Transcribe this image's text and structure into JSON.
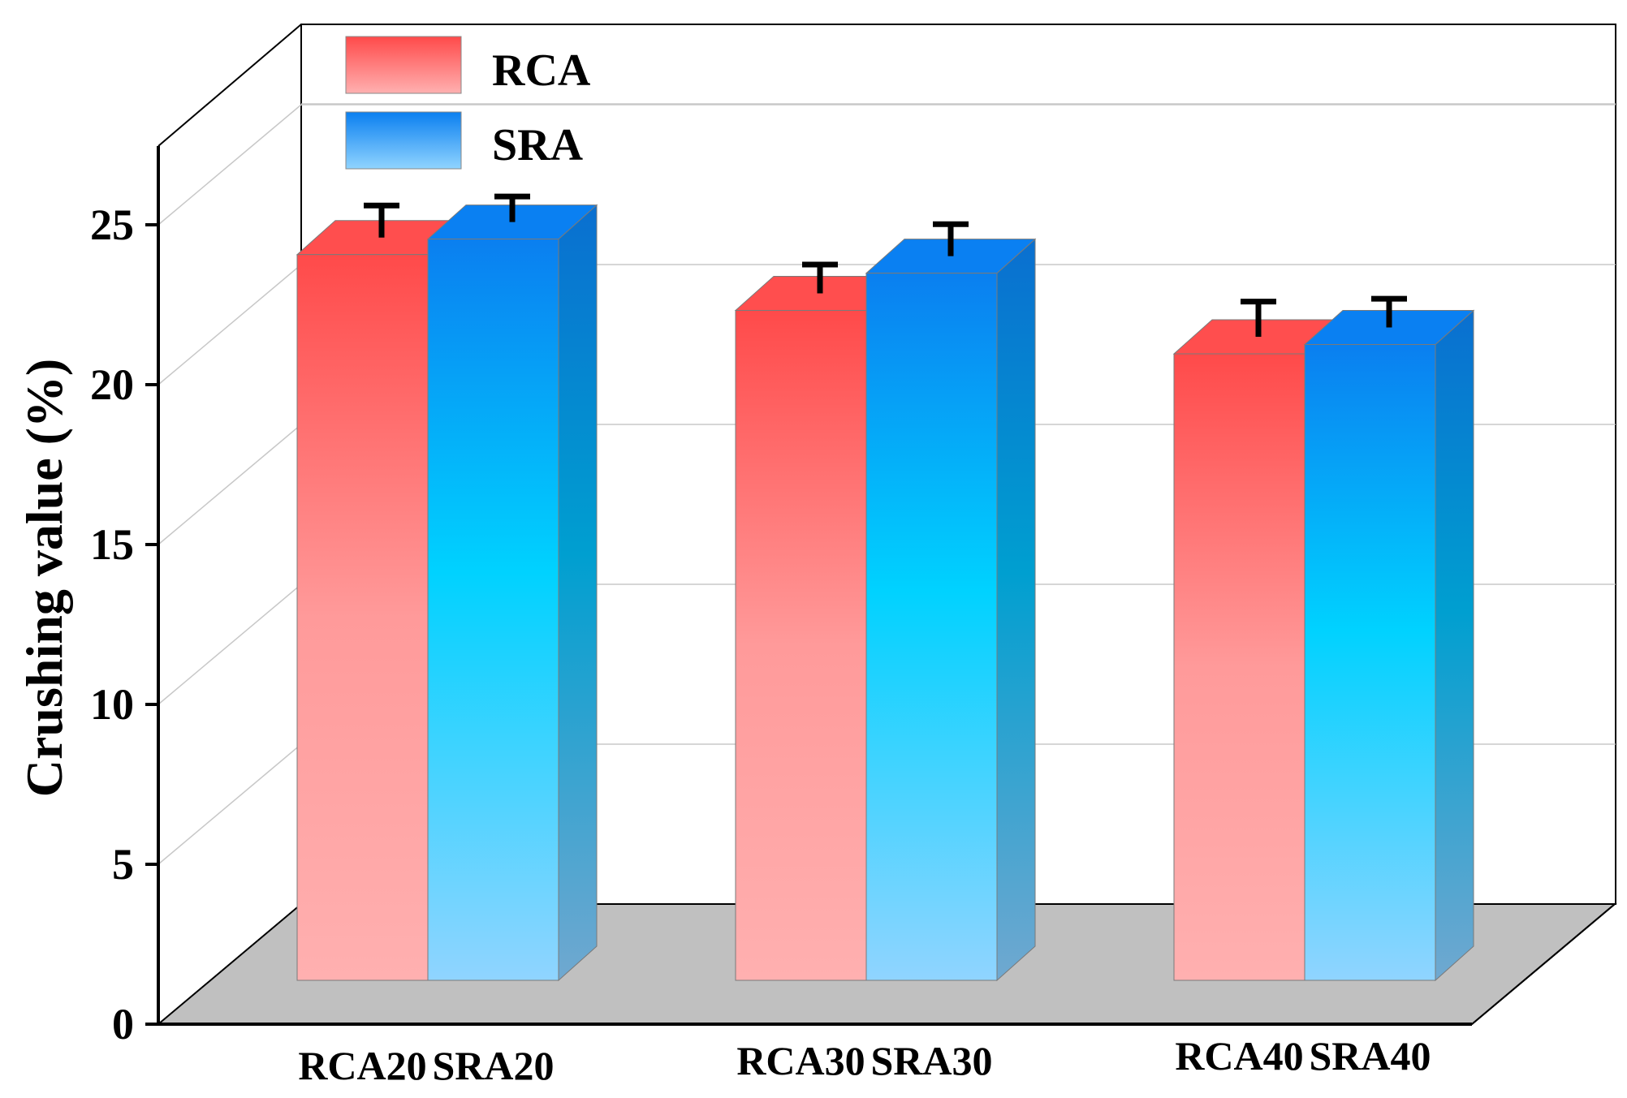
{
  "chart_data": {
    "type": "bar",
    "style": "3d",
    "ylabel": "Crushing value (%)",
    "xlabel": "",
    "ylim": [
      0,
      27.5
    ],
    "yticks": [
      0,
      5,
      10,
      15,
      20,
      25
    ],
    "grid": true,
    "legend_position": "top-left",
    "groups": [
      {
        "bars": [
          {
            "label": "RCA20",
            "series": "RCA",
            "value": 23.4,
            "error": 1.0
          },
          {
            "label": "SRA20",
            "series": "SRA",
            "value": 23.9,
            "error": 0.8
          }
        ]
      },
      {
        "bars": [
          {
            "label": "RCA30",
            "series": "RCA",
            "value": 21.6,
            "error": 0.9
          },
          {
            "label": "SRA30",
            "series": "SRA",
            "value": 22.8,
            "error": 1.0
          }
        ]
      },
      {
        "bars": [
          {
            "label": "RCA40",
            "series": "RCA",
            "value": 20.2,
            "error": 1.1
          },
          {
            "label": "SRA40",
            "series": "SRA",
            "value": 20.5,
            "error": 0.9
          }
        ]
      }
    ],
    "series": [
      {
        "name": "RCA",
        "color_top": "#ff4a4a",
        "color_bottom": "#ffb0b0"
      },
      {
        "name": "SRA",
        "color_top": "#0a7ff0",
        "color_mid": "#00d2ff",
        "color_bottom": "#90d4ff"
      }
    ]
  }
}
